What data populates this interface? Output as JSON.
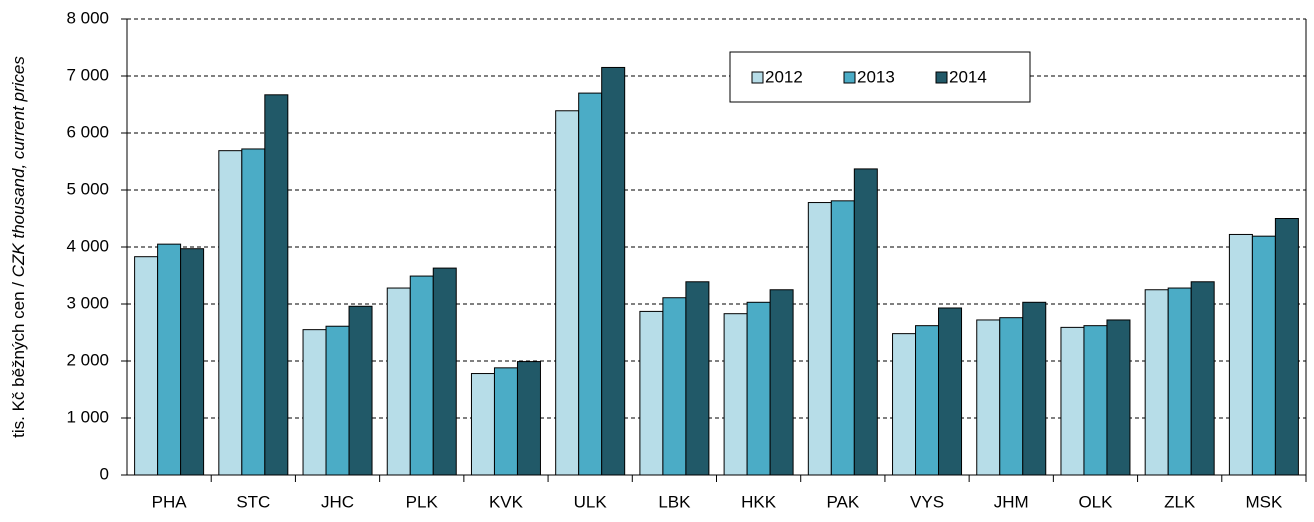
{
  "chart_data": {
    "type": "bar",
    "ylabel": "tis. Kč běžných cen / ",
    "ylabel_en": "CZK thousand, current prices",
    "categories": [
      "PHA",
      "STC",
      "JHC",
      "PLK",
      "KVK",
      "ULK",
      "LBK",
      "HKK",
      "PAK",
      "VYS",
      "JHM",
      "OLK",
      "ZLK",
      "MSK"
    ],
    "series": [
      {
        "name": "2012",
        "color": "#b7dde8",
        "values": [
          3830,
          5690,
          2550,
          3280,
          1780,
          6390,
          2870,
          2830,
          4780,
          2480,
          2720,
          2590,
          3250,
          4220
        ]
      },
      {
        "name": "2013",
        "color": "#4bacc6",
        "values": [
          4050,
          5720,
          2610,
          3490,
          1880,
          6700,
          3110,
          3030,
          4810,
          2620,
          2760,
          2620,
          3280,
          4190
        ]
      },
      {
        "name": "2014",
        "color": "#215968",
        "values": [
          3970,
          6670,
          2960,
          3630,
          1990,
          7150,
          3390,
          3250,
          5370,
          2930,
          3030,
          2720,
          3390,
          4500
        ]
      }
    ],
    "ylim": [
      0,
      8000
    ],
    "yticks": [
      0,
      {
        "value": 1000,
        "label": "1 000"
      },
      {
        "value": 2000,
        "label": "2 000"
      },
      {
        "value": 3000,
        "label": "3 000"
      },
      {
        "value": 4000,
        "label": "4 000"
      },
      {
        "value": 5000,
        "label": "5 000"
      },
      {
        "value": 6000,
        "label": "6 000"
      },
      {
        "value": 7000,
        "label": "7 000"
      },
      {
        "value": 8000,
        "label": "8 000"
      }
    ],
    "grid": true,
    "legend": "top-right"
  }
}
